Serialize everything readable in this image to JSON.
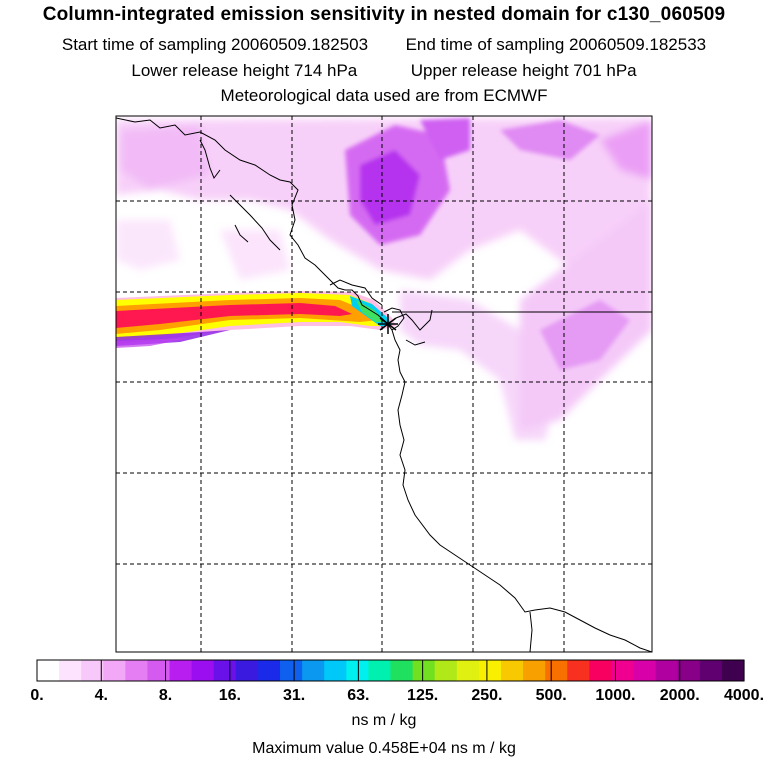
{
  "header": {
    "title": "Column-integrated emission sensitivity in nested domain for c130_060509",
    "start_label": "Start time of sampling 20060509.182503",
    "end_label": "End time of sampling 20060509.182533",
    "lower_label": "Lower release height  714 hPa",
    "upper_label": "Upper release height  701 hPa",
    "met_label": "Meteorological data used are from ECMWF"
  },
  "map": {
    "grid": "dashed",
    "marker": "release-point-star"
  },
  "colorbar": {
    "tick_labels": [
      "0.",
      "4.",
      "8.",
      "16.",
      "31.",
      "63.",
      "125.",
      "250.",
      "500.",
      "1000.",
      "2000.",
      "4000."
    ],
    "colors": [
      "#ffffff",
      "#fde3fd",
      "#f9c8fb",
      "#f3a8f7",
      "#e47ef2",
      "#d55af0",
      "#b91ef0",
      "#9b0ef0",
      "#6a10e8",
      "#3b1ae0",
      "#1a2ae8",
      "#1060f0",
      "#0a98f0",
      "#00c8f8",
      "#00f0f0",
      "#00f0b0",
      "#20e060",
      "#70e020",
      "#b0e818",
      "#e0f010",
      "#f8f000",
      "#f8c800",
      "#f8a000",
      "#f87000",
      "#f83020",
      "#f80060",
      "#f00090",
      "#d800a8",
      "#b000a0",
      "#880088",
      "#600070",
      "#400050"
    ],
    "units": "ns m / kg",
    "max_value_text": "Maximum value  0.458E+04 ns m / kg"
  }
}
